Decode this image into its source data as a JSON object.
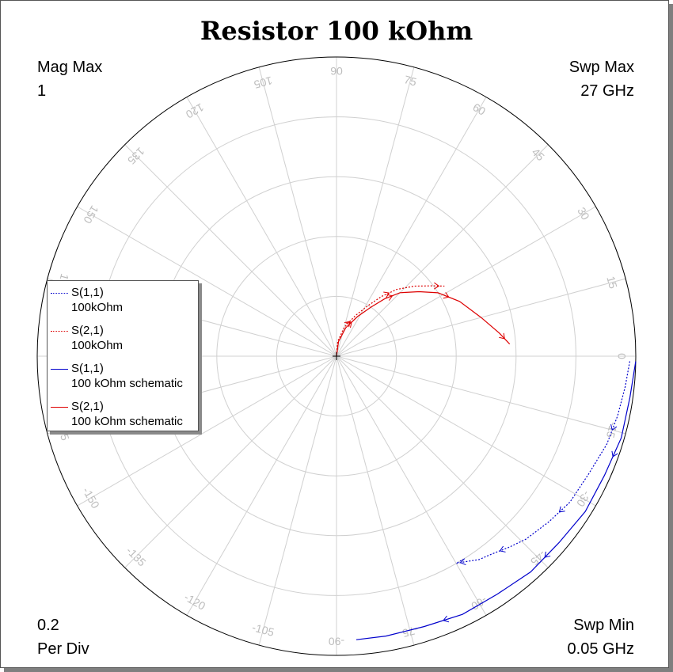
{
  "window": {
    "title": "Resistor 100 kOhm",
    "mag_max_label": "Mag Max",
    "mag_max_value": "1",
    "swp_max_label": "Swp Max",
    "swp_max_value": "27  GHz",
    "per_div_value": "0.2",
    "per_div_label": "Per Div",
    "swp_min_label": "Swp Min",
    "swp_min_value": "0.05  GHz"
  },
  "chart_data": {
    "type": "polar",
    "title": "Resistor 100 kOhm",
    "mag_max": 1,
    "per_div": 0.2,
    "sweep_min_ghz": 0.05,
    "sweep_max_ghz": 27,
    "angle_tick_step_deg": 15,
    "angle_tick_labels": [
      "0",
      "15",
      "30",
      "45",
      "60",
      "75",
      "90",
      "105",
      "120",
      "135",
      "150",
      "165",
      "180",
      "-165",
      "-150",
      "-135",
      "-120",
      "-105",
      "-90",
      "-75",
      "-60",
      "-45",
      "-30",
      "-15"
    ],
    "legend": {
      "placement": "left",
      "items": [
        {
          "name": "S(1,1)",
          "sub": "100kOhm",
          "color": "#0000cc",
          "style": "dotted"
        },
        {
          "name": "S(2,1)",
          "sub": "100kOhm",
          "color": "#dd0000",
          "style": "dotted"
        },
        {
          "name": "S(1,1)",
          "sub": "100 kOhm schematic",
          "color": "#0000cc",
          "style": "solid"
        },
        {
          "name": "S(2,1)",
          "sub": "100 kOhm schematic",
          "color": "#dd0000",
          "style": "solid"
        }
      ]
    },
    "series": [
      {
        "legend_index": 2,
        "color": "#0000cc",
        "dash": "",
        "points": [
          [
            1.0,
            -1
          ],
          [
            0.99,
            -8
          ],
          [
            0.99,
            -16
          ],
          [
            0.98,
            -24
          ],
          [
            0.98,
            -32
          ],
          [
            0.97,
            -40
          ],
          [
            0.97,
            -48
          ],
          [
            0.96,
            -56
          ],
          [
            0.96,
            -64
          ],
          [
            0.95,
            -72
          ],
          [
            0.95,
            -80
          ],
          [
            0.95,
            -86
          ]
        ]
      },
      {
        "legend_index": 0,
        "color": "#0000cc",
        "dash": "2,2",
        "points": [
          [
            0.98,
            -1
          ],
          [
            0.97,
            -6
          ],
          [
            0.96,
            -12
          ],
          [
            0.95,
            -18
          ],
          [
            0.93,
            -25
          ],
          [
            0.92,
            -32
          ],
          [
            0.9,
            -38
          ],
          [
            0.88,
            -44
          ],
          [
            0.86,
            -48
          ],
          [
            0.84,
            -52
          ],
          [
            0.83,
            -55
          ],
          [
            0.81,
            -58
          ],
          [
            0.8,
            -60
          ],
          [
            0.8,
            -58
          ]
        ]
      },
      {
        "legend_index": 3,
        "color": "#dd0000",
        "dash": "",
        "points": [
          [
            0.0,
            90
          ],
          [
            0.05,
            82
          ],
          [
            0.1,
            72
          ],
          [
            0.15,
            62
          ],
          [
            0.2,
            55
          ],
          [
            0.25,
            50
          ],
          [
            0.3,
            45
          ],
          [
            0.35,
            38
          ],
          [
            0.4,
            32
          ],
          [
            0.45,
            24
          ],
          [
            0.5,
            15
          ],
          [
            0.55,
            8
          ],
          [
            0.58,
            4
          ]
        ]
      },
      {
        "legend_index": 1,
        "color": "#dd0000",
        "dash": "2,2",
        "points": [
          [
            0.0,
            95
          ],
          [
            0.05,
            85
          ],
          [
            0.1,
            75
          ],
          [
            0.15,
            65
          ],
          [
            0.2,
            58
          ],
          [
            0.25,
            53
          ],
          [
            0.3,
            48
          ],
          [
            0.35,
            42
          ],
          [
            0.4,
            36
          ],
          [
            0.43,
            33
          ]
        ]
      }
    ]
  }
}
